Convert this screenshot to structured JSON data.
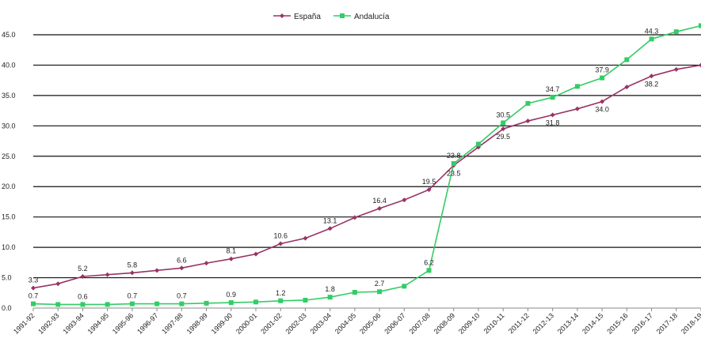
{
  "chart_data": {
    "type": "line",
    "title": "",
    "xlabel": "",
    "ylabel": "",
    "ylim": [
      0,
      45
    ],
    "yticks": [
      "0.0",
      "5.0",
      "10.0",
      "15.0",
      "20.0",
      "25.0",
      "30.0",
      "35.0",
      "40.0",
      "45.0"
    ],
    "grid": "horizontal",
    "legend_position": "top-center",
    "categories": [
      "1991-92",
      "1992-93",
      "1993-94",
      "1994-95",
      "1995-96",
      "1996-97",
      "1997-98",
      "1998-99",
      "1999-00",
      "2000-01",
      "2001-02",
      "2002-03",
      "2003-04",
      "2004-05",
      "2005-06",
      "2006-07",
      "2007-08",
      "2008-09",
      "2009-10",
      "2010-11",
      "2011-12",
      "2012-13",
      "2013-14",
      "2014-15",
      "2015-16",
      "2016-17",
      "2017-18",
      "2018-19"
    ],
    "series": [
      {
        "name": "España",
        "color": "#993366",
        "marker": "diamond",
        "values": [
          3.3,
          4.0,
          5.2,
          5.5,
          5.8,
          6.2,
          6.6,
          7.4,
          8.1,
          8.9,
          10.6,
          11.5,
          13.1,
          14.9,
          16.4,
          17.8,
          19.5,
          23.5,
          26.5,
          29.5,
          30.8,
          31.8,
          32.8,
          34.0,
          36.4,
          38.2,
          39.3,
          40.0
        ],
        "labels": [
          {
            "i": 0,
            "text": "3.3"
          },
          {
            "i": 2,
            "text": "5.2"
          },
          {
            "i": 4,
            "text": "5.8"
          },
          {
            "i": 6,
            "text": "6.6"
          },
          {
            "i": 8,
            "text": "8.1"
          },
          {
            "i": 10,
            "text": "10.6"
          },
          {
            "i": 12,
            "text": "13.1"
          },
          {
            "i": 14,
            "text": "16.4"
          },
          {
            "i": 16,
            "text": "19.5"
          },
          {
            "i": 17,
            "text": "23.5"
          },
          {
            "i": 19,
            "text": "29.5"
          },
          {
            "i": 21,
            "text": "31.8"
          },
          {
            "i": 23,
            "text": "34.0"
          },
          {
            "i": 25,
            "text": "38.2"
          }
        ]
      },
      {
        "name": "Andalucía",
        "color": "#33cc66",
        "marker": "square",
        "values": [
          0.7,
          0.6,
          0.6,
          0.6,
          0.7,
          0.7,
          0.7,
          0.8,
          0.9,
          1.0,
          1.2,
          1.3,
          1.8,
          2.6,
          2.7,
          3.6,
          6.2,
          23.8,
          27.0,
          30.5,
          33.7,
          34.7,
          36.5,
          37.9,
          40.9,
          44.3,
          45.5,
          46.5
        ],
        "labels": [
          {
            "i": 0,
            "text": "0.7"
          },
          {
            "i": 2,
            "text": "0.6"
          },
          {
            "i": 4,
            "text": "0.7"
          },
          {
            "i": 6,
            "text": "0.7"
          },
          {
            "i": 8,
            "text": "0.9"
          },
          {
            "i": 10,
            "text": "1.2"
          },
          {
            "i": 12,
            "text": "1.8"
          },
          {
            "i": 14,
            "text": "2.7"
          },
          {
            "i": 16,
            "text": "6.2"
          },
          {
            "i": 17,
            "text": "23.8"
          },
          {
            "i": 19,
            "text": "30.5"
          },
          {
            "i": 21,
            "text": "34.7"
          },
          {
            "i": 23,
            "text": "37.9"
          },
          {
            "i": 25,
            "text": "44.3"
          }
        ]
      }
    ]
  }
}
